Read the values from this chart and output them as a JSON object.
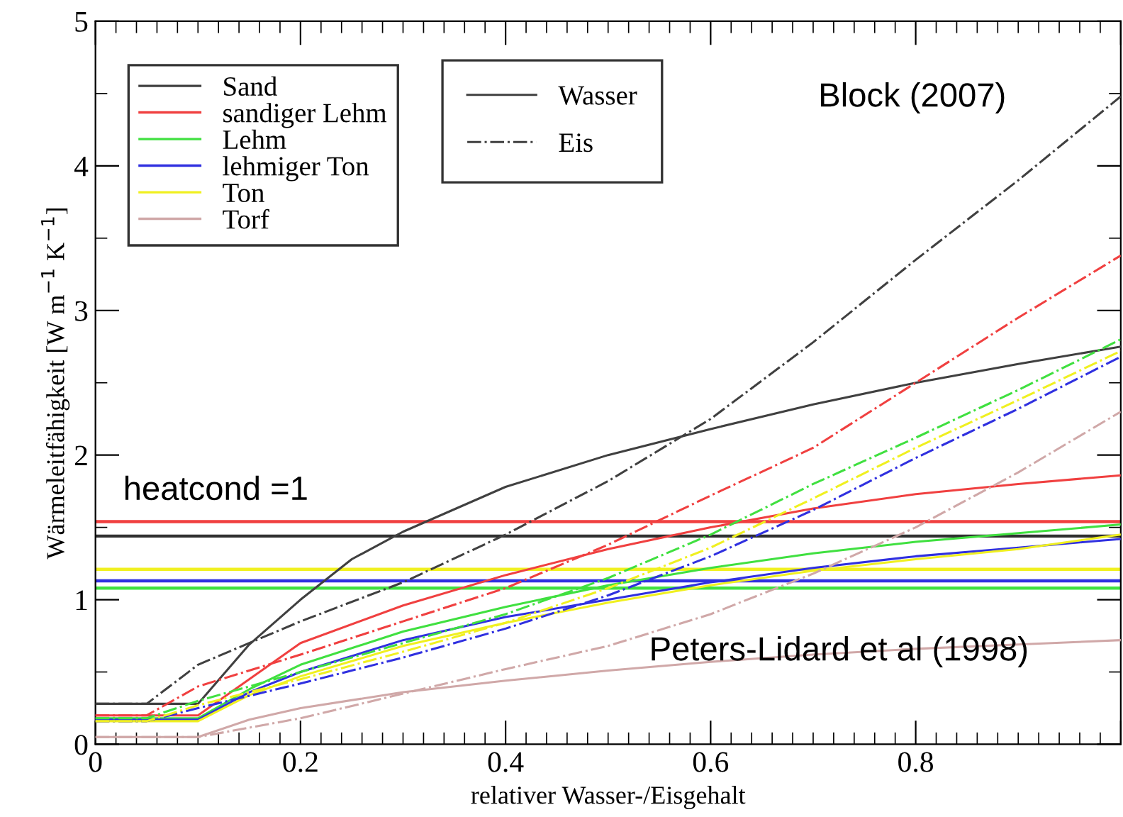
{
  "chart_data": {
    "type": "line",
    "xlabel": "relativer Wasser-/Eisgehalt",
    "ylabel": "Wärmeleitfähigkeit [W m$^{−1}$ K$^{−1}$]",
    "xlim": [
      0,
      1
    ],
    "ylim": [
      0,
      5
    ],
    "xticks": [
      0,
      0.2,
      0.4,
      0.6,
      0.8,
      {
        "value": 1,
        "label": null
      }
    ],
    "yticks": [
      0,
      1,
      2,
      3,
      4,
      5
    ],
    "grid": false,
    "legend": "top left",
    "marker": "none",
    "series": [
      {
        "name": "Sand",
        "color": "#404040",
        "line_style": "solid",
        "x": [
          0,
          0.1,
          0.15,
          0.2,
          0.25,
          0.3,
          0.4,
          0.5,
          0.6,
          0.7,
          0.8,
          0.9,
          1.0
        ],
        "values": [
          0.28,
          0.28,
          0.69,
          1.0,
          1.28,
          1.47,
          1.78,
          2.0,
          2.18,
          2.35,
          2.5,
          2.63,
          2.75
        ]
      },
      {
        "name": "sandiger Lehm",
        "color": "#f04040",
        "line_style": "solid",
        "x": [
          0,
          0.1,
          0.15,
          0.2,
          0.3,
          0.4,
          0.5,
          0.6,
          0.7,
          0.8,
          0.9,
          1.0
        ],
        "values": [
          0.2,
          0.2,
          0.45,
          0.7,
          0.96,
          1.17,
          1.35,
          1.5,
          1.63,
          1.73,
          1.8,
          1.86
        ]
      },
      {
        "name": "Lehm",
        "color": "#40e040",
        "line_style": "solid",
        "x": [
          0,
          0.1,
          0.15,
          0.2,
          0.3,
          0.4,
          0.5,
          0.6,
          0.7,
          0.8,
          0.9,
          1.0
        ],
        "values": [
          0.18,
          0.18,
          0.38,
          0.55,
          0.78,
          0.95,
          1.1,
          1.22,
          1.32,
          1.4,
          1.46,
          1.52
        ]
      },
      {
        "name": "lehmiger Ton",
        "color": "#3030e0",
        "line_style": "solid",
        "x": [
          0,
          0.1,
          0.15,
          0.2,
          0.3,
          0.4,
          0.5,
          0.6,
          0.7,
          0.8,
          0.9,
          1.0
        ],
        "values": [
          0.17,
          0.17,
          0.36,
          0.5,
          0.72,
          0.88,
          1.0,
          1.12,
          1.22,
          1.3,
          1.36,
          1.42
        ]
      },
      {
        "name": "Ton",
        "color": "#f0f020",
        "line_style": "solid",
        "x": [
          0,
          0.1,
          0.15,
          0.2,
          0.3,
          0.4,
          0.5,
          0.6,
          0.7,
          0.8,
          0.9,
          1.0
        ],
        "values": [
          0.16,
          0.16,
          0.34,
          0.47,
          0.68,
          0.84,
          0.98,
          1.1,
          1.2,
          1.28,
          1.35,
          1.45
        ]
      },
      {
        "name": "Torf",
        "color": "#d0a8a8",
        "line_style": "solid",
        "x": [
          0,
          0.1,
          0.15,
          0.2,
          0.3,
          0.4,
          0.5,
          0.6,
          0.7,
          0.8,
          0.9,
          1.0
        ],
        "values": [
          0.05,
          0.05,
          0.17,
          0.25,
          0.36,
          0.44,
          0.51,
          0.57,
          0.62,
          0.66,
          0.69,
          0.72
        ]
      },
      {
        "color": "#404040",
        "line_style": "dashdot",
        "x": [
          0,
          0.05,
          0.1,
          0.2,
          0.3,
          0.4,
          0.5,
          0.6,
          0.7,
          0.8,
          0.9,
          1.0
        ],
        "values": [
          0.28,
          0.28,
          0.55,
          0.85,
          1.12,
          1.45,
          1.82,
          2.25,
          2.78,
          3.35,
          3.9,
          4.48
        ]
      },
      {
        "color": "#f04040",
        "line_style": "dashdot",
        "x": [
          0,
          0.05,
          0.1,
          0.2,
          0.3,
          0.4,
          0.5,
          0.6,
          0.7,
          0.8,
          0.9,
          1.0
        ],
        "values": [
          0.2,
          0.2,
          0.4,
          0.62,
          0.85,
          1.08,
          1.38,
          1.72,
          2.05,
          2.5,
          2.95,
          3.38
        ]
      },
      {
        "color": "#40e040",
        "line_style": "dashdot",
        "x": [
          0,
          0.05,
          0.1,
          0.2,
          0.3,
          0.4,
          0.5,
          0.6,
          0.7,
          0.8,
          0.9,
          1.0
        ],
        "values": [
          0.18,
          0.18,
          0.3,
          0.5,
          0.7,
          0.9,
          1.15,
          1.45,
          1.8,
          2.12,
          2.45,
          2.8
        ]
      },
      {
        "color": "#3030e0",
        "line_style": "dashdot",
        "x": [
          0,
          0.05,
          0.1,
          0.2,
          0.3,
          0.4,
          0.5,
          0.6,
          0.7,
          0.8,
          0.9,
          1.0
        ],
        "values": [
          0.16,
          0.16,
          0.25,
          0.42,
          0.6,
          0.8,
          1.03,
          1.3,
          1.62,
          1.98,
          2.32,
          2.68
        ]
      },
      {
        "color": "#f0f020",
        "line_style": "dashdot",
        "x": [
          0,
          0.05,
          0.1,
          0.2,
          0.3,
          0.4,
          0.5,
          0.6,
          0.7,
          0.8,
          0.9,
          1.0
        ],
        "values": [
          0.16,
          0.16,
          0.27,
          0.45,
          0.64,
          0.84,
          1.08,
          1.36,
          1.7,
          2.05,
          2.38,
          2.72
        ]
      },
      {
        "color": "#d0a8a8",
        "line_style": "dashdot",
        "x": [
          0,
          0.1,
          0.2,
          0.3,
          0.4,
          0.5,
          0.6,
          0.7,
          0.8,
          0.9,
          1.0
        ],
        "values": [
          0.05,
          0.05,
          0.18,
          0.35,
          0.52,
          0.68,
          0.9,
          1.18,
          1.5,
          1.88,
          2.3
        ]
      }
    ],
    "ref_lines": [
      {
        "axis": "y",
        "value": 1.54,
        "color": "#f04040"
      },
      {
        "axis": "y",
        "value": 1.44,
        "color": "#303030"
      },
      {
        "axis": "y",
        "value": 1.21,
        "color": "#f0f020"
      },
      {
        "axis": "y",
        "value": 1.13,
        "color": "#3030e0"
      },
      {
        "axis": "y",
        "value": 1.08,
        "color": "#40e040"
      }
    ],
    "annotations": [
      "heatcond =1",
      "Block (2007)",
      "Peters-Lidard et al (1998)",
      "Wasser",
      "Eis"
    ]
  }
}
